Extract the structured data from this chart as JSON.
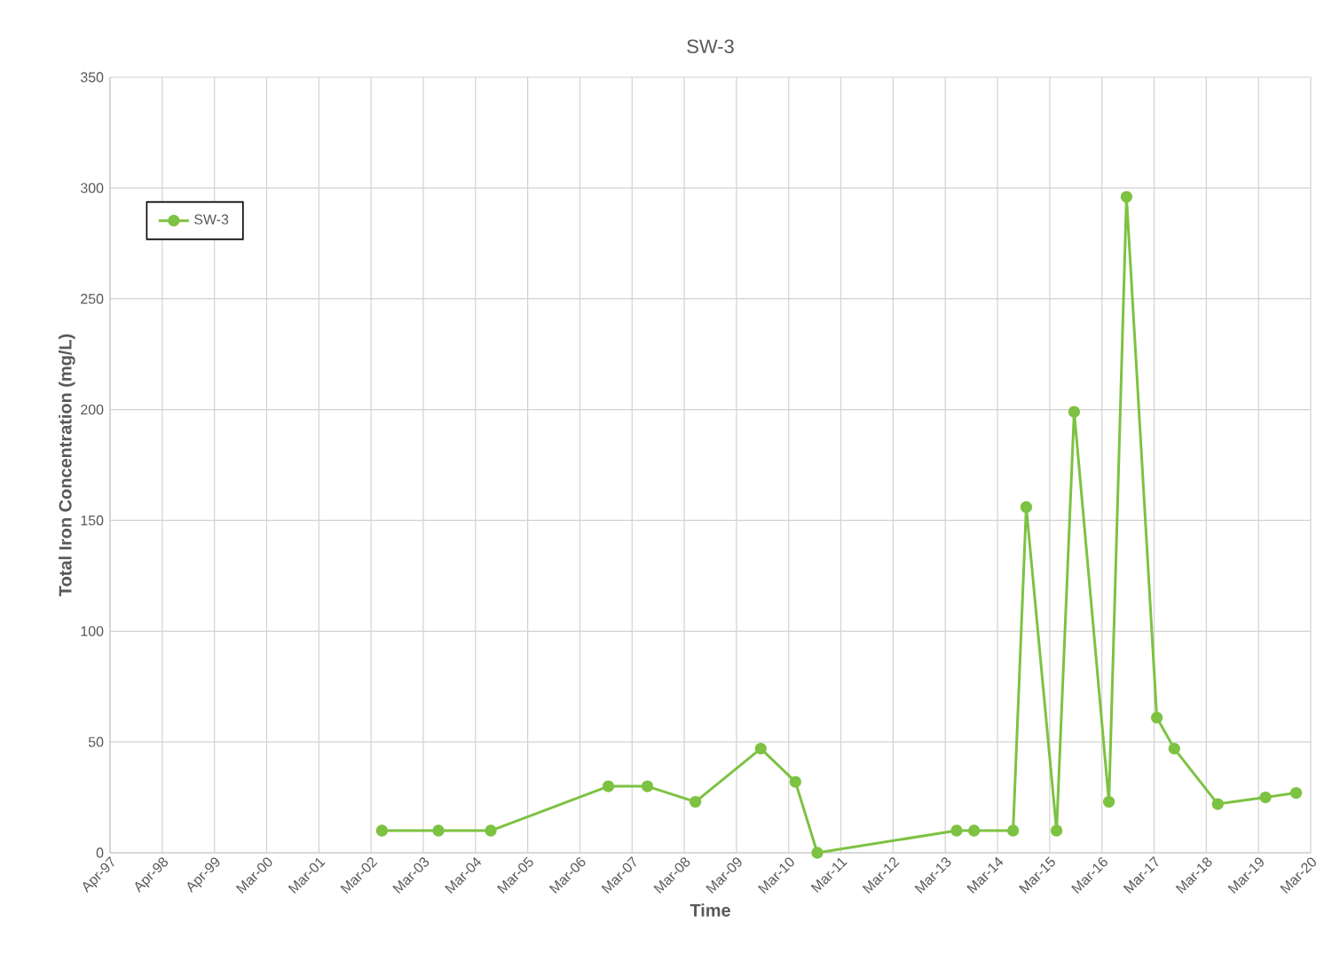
{
  "chart_data": {
    "type": "line",
    "title": "SW-3",
    "xlabel": "Time",
    "ylabel": "Total Iron Concentration (mg/L)",
    "series": [
      {
        "name": "SW-3",
        "color": "#7dc242",
        "x": [
          "2002-06",
          "2003-07",
          "2004-07",
          "2006-10",
          "2007-07",
          "2008-06",
          "2009-09",
          "2010-05",
          "2010-10",
          "2013-06",
          "2013-10",
          "2014-07",
          "2014-10",
          "2015-05",
          "2015-09",
          "2016-05",
          "2016-09",
          "2017-04",
          "2017-08",
          "2018-06",
          "2019-05",
          "2019-12"
        ],
        "values": [
          10,
          10,
          10,
          30,
          30,
          23,
          47,
          32,
          0,
          10,
          10,
          10,
          156,
          10,
          199,
          23,
          296,
          61,
          47,
          22,
          25,
          27
        ]
      }
    ],
    "marker": "circle",
    "line_style": "solid",
    "grid": true,
    "legend": "top left",
    "ylim": [
      0,
      350
    ],
    "yticks": [
      0,
      50,
      100,
      150,
      200,
      250,
      300,
      350
    ],
    "xlim": [
      "1997-04-01",
      "2020-03-26"
    ],
    "xticks": [
      {
        "value": "1997-04-01",
        "label": "Apr-97"
      },
      {
        "value": "1998-04-01",
        "label": "Apr-98"
      },
      {
        "value": "1999-04-01",
        "label": "Apr-99"
      },
      {
        "value": "2000-03-31",
        "label": "Mar-00"
      },
      {
        "value": "2001-03-31",
        "label": "Mar-01"
      },
      {
        "value": "2002-03-31",
        "label": "Mar-02"
      },
      {
        "value": "2003-03-31",
        "label": "Mar-03"
      },
      {
        "value": "2004-03-30",
        "label": "Mar-04"
      },
      {
        "value": "2005-03-30",
        "label": "Mar-05"
      },
      {
        "value": "2006-03-30",
        "label": "Mar-06"
      },
      {
        "value": "2007-03-30",
        "label": "Mar-07"
      },
      {
        "value": "2008-03-29",
        "label": "Mar-08"
      },
      {
        "value": "2009-03-29",
        "label": "Mar-09"
      },
      {
        "value": "2010-03-29",
        "label": "Mar-10"
      },
      {
        "value": "2011-03-29",
        "label": "Mar-11"
      },
      {
        "value": "2012-03-28",
        "label": "Mar-12"
      },
      {
        "value": "2013-03-28",
        "label": "Mar-13"
      },
      {
        "value": "2014-03-28",
        "label": "Mar-14"
      },
      {
        "value": "2015-03-28",
        "label": "Mar-15"
      },
      {
        "value": "2016-03-27",
        "label": "Mar-16"
      },
      {
        "value": "2017-03-27",
        "label": "Mar-17"
      },
      {
        "value": "2018-03-27",
        "label": "Mar-18"
      },
      {
        "value": "2019-03-27",
        "label": "Mar-19"
      },
      {
        "value": "2020-03-26",
        "label": "Mar-20"
      }
    ]
  }
}
